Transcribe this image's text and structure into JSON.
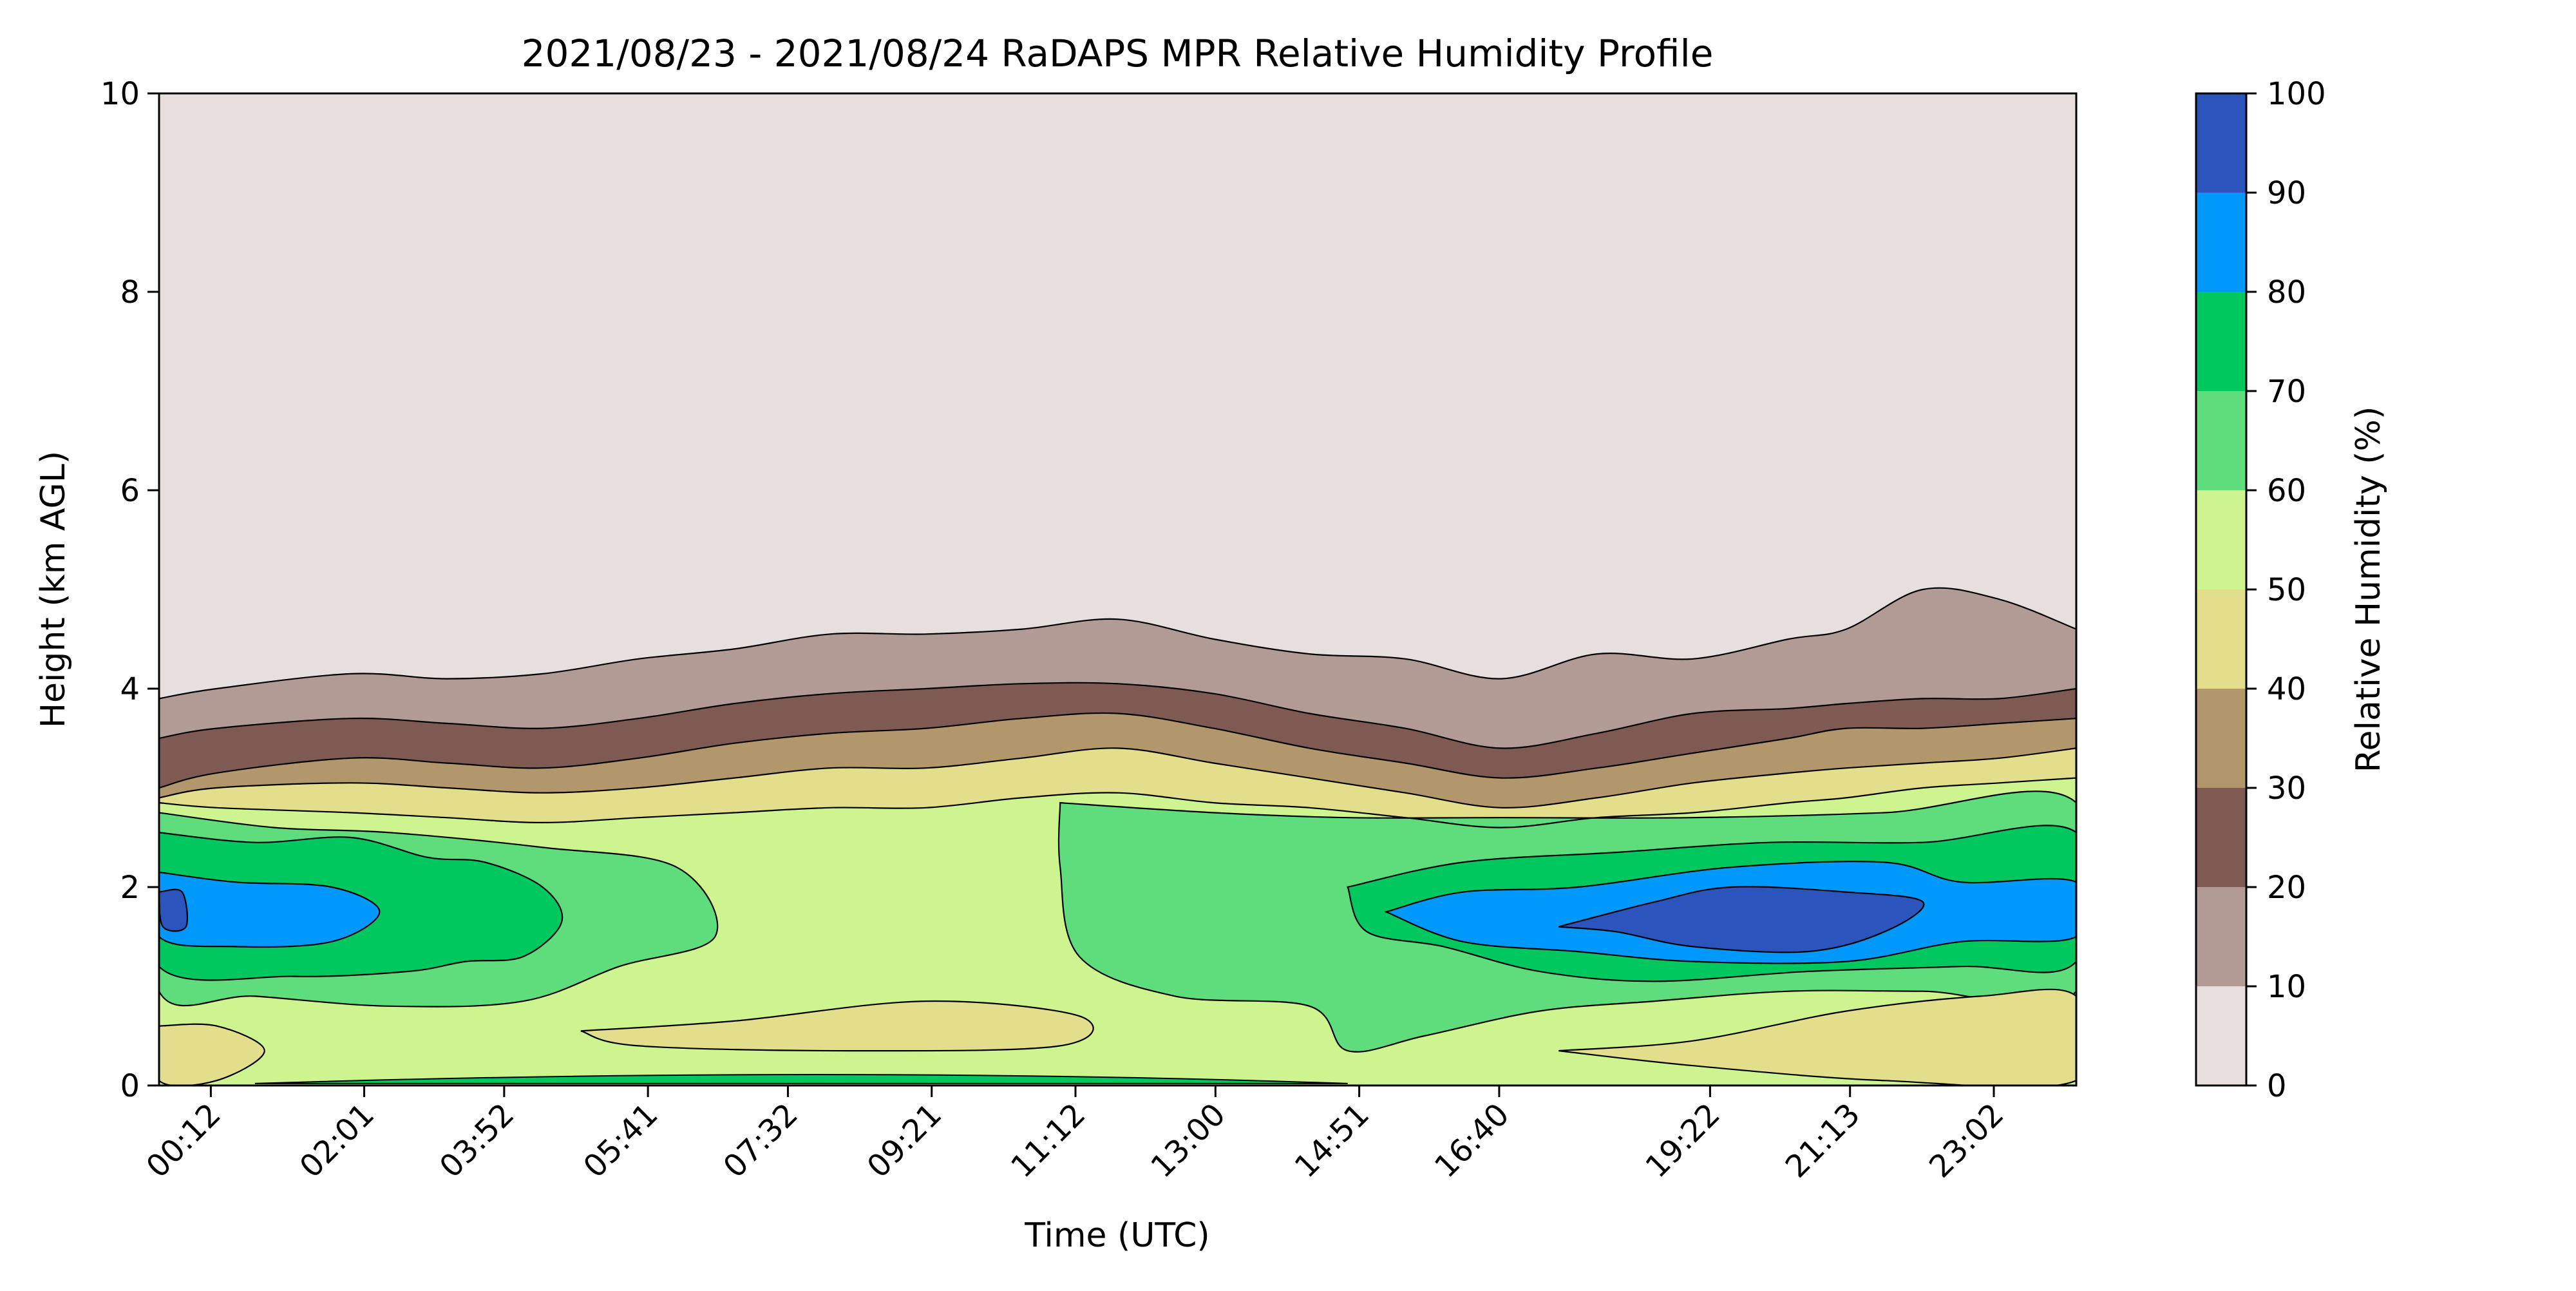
{
  "chart_data": {
    "type": "heatmap",
    "subtype": "filled-contour",
    "title": "2021/08/23 - 2021/08/24 RaDAPS MPR Relative Humidity Profile",
    "xlabel": "Time (UTC)",
    "ylabel": "Height (km AGL)",
    "colorbar_label": "Relative Humidity (%)",
    "x_tick_labels": [
      "00:12",
      "02:01",
      "03:52",
      "05:41",
      "07:32",
      "09:21",
      "11:12",
      "13:00",
      "14:51",
      "16:40",
      "19:22",
      "21:13",
      "23:02"
    ],
    "x_tick_fraction": [
      0.027,
      0.107,
      0.18,
      0.255,
      0.328,
      0.403,
      0.478,
      0.551,
      0.626,
      0.699,
      0.809,
      0.882,
      0.957
    ],
    "ylim": [
      0,
      10
    ],
    "y_ticks": [
      0,
      2,
      4,
      6,
      8,
      10
    ],
    "levels": [
      0,
      10,
      20,
      30,
      40,
      50,
      60,
      70,
      80,
      90,
      100
    ],
    "level_colors": [
      "#e6dfde",
      "#b29a95",
      "#7f5a52",
      "#b1976b",
      "#e2de8c",
      "#cdf48f",
      "#5fdc7c",
      "#00c75e",
      "#0098fb",
      "#2b55bc"
    ],
    "contour_boundaries_km": {
      "x": [
        0,
        0.03,
        0.1,
        0.15,
        0.2,
        0.25,
        0.3,
        0.35,
        0.4,
        0.45,
        0.5,
        0.55,
        0.6,
        0.65,
        0.7,
        0.75,
        0.8,
        0.85,
        0.88,
        0.92,
        0.96,
        1.0
      ],
      "rh_10": [
        3.9,
        4.0,
        4.15,
        4.1,
        4.15,
        4.3,
        4.4,
        4.55,
        4.55,
        4.6,
        4.7,
        4.5,
        4.35,
        4.3,
        4.1,
        4.35,
        4.3,
        4.5,
        4.6,
        5.0,
        4.9,
        4.6
      ],
      "rh_20": [
        3.5,
        3.6,
        3.7,
        3.65,
        3.6,
        3.7,
        3.85,
        3.95,
        4.0,
        4.05,
        4.05,
        3.95,
        3.75,
        3.6,
        3.4,
        3.55,
        3.75,
        3.8,
        3.85,
        3.9,
        3.9,
        4.0
      ],
      "rh_30": [
        3.0,
        3.15,
        3.3,
        3.25,
        3.2,
        3.3,
        3.45,
        3.55,
        3.6,
        3.7,
        3.75,
        3.6,
        3.4,
        3.25,
        3.1,
        3.2,
        3.35,
        3.5,
        3.6,
        3.6,
        3.65,
        3.7
      ],
      "rh_40": [
        2.9,
        3.0,
        3.05,
        3.0,
        2.95,
        3.0,
        3.1,
        3.2,
        3.2,
        3.3,
        3.4,
        3.25,
        3.1,
        2.95,
        2.8,
        2.9,
        3.05,
        3.15,
        3.2,
        3.25,
        3.3,
        3.4
      ],
      "rh_50_upper": [
        2.85,
        2.8,
        2.75,
        2.7,
        2.65,
        2.7,
        2.75,
        2.8,
        2.8,
        2.9,
        2.95,
        2.85,
        2.8,
        2.7,
        2.6,
        2.7,
        2.75,
        2.85,
        2.9,
        3.0,
        3.05,
        3.1
      ]
    }
  }
}
